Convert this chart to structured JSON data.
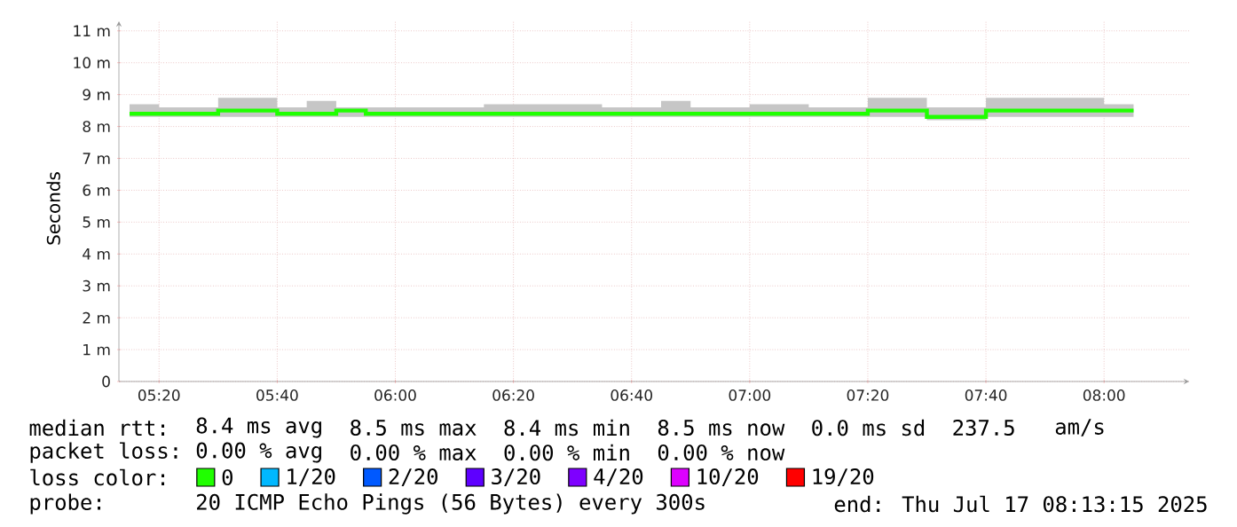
{
  "chart_data": {
    "type": "step",
    "ylabel": "Seconds",
    "x": [
      5.25,
      5.3333,
      5.4167,
      5.5,
      5.5833,
      5.6667,
      5.75,
      5.8333,
      5.9167,
      6.0,
      6.0833,
      6.1667,
      6.25,
      6.3333,
      6.4167,
      6.5,
      6.5833,
      6.6667,
      6.75,
      6.8333,
      6.9167,
      7.0,
      7.0833,
      7.1667,
      7.25,
      7.3333,
      7.4167,
      7.5,
      7.5833,
      7.6667,
      7.75,
      7.8333,
      7.9167,
      8.0,
      8.0833
    ],
    "series": [
      {
        "name": "0",
        "color": "#20ff00",
        "values": [
          8.4,
          8.4,
          8.4,
          8.5,
          8.5,
          8.4,
          8.4,
          8.5,
          8.4,
          8.4,
          8.4,
          8.4,
          8.4,
          8.4,
          8.4,
          8.4,
          8.4,
          8.4,
          8.4,
          8.4,
          8.4,
          8.4,
          8.4,
          8.4,
          8.4,
          8.5,
          8.5,
          8.3,
          8.3,
          8.5,
          8.5,
          8.5,
          8.5,
          8.5,
          8.5
        ],
        "lower": [
          8.3,
          8.3,
          8.3,
          8.3,
          8.3,
          8.3,
          8.3,
          8.3,
          8.3,
          8.3,
          8.3,
          8.3,
          8.3,
          8.3,
          8.3,
          8.3,
          8.3,
          8.3,
          8.3,
          8.3,
          8.3,
          8.3,
          8.3,
          8.3,
          8.3,
          8.3,
          8.3,
          8.2,
          8.2,
          8.3,
          8.3,
          8.3,
          8.3,
          8.3,
          8.3
        ],
        "upper": [
          8.7,
          8.6,
          8.6,
          8.9,
          8.9,
          8.6,
          8.8,
          8.6,
          8.6,
          8.6,
          8.6,
          8.6,
          8.7,
          8.7,
          8.7,
          8.7,
          8.6,
          8.6,
          8.8,
          8.6,
          8.6,
          8.7,
          8.7,
          8.6,
          8.6,
          8.9,
          8.9,
          8.6,
          8.6,
          8.9,
          8.9,
          8.9,
          8.9,
          8.7,
          8.7
        ]
      },
      {
        "name": "1/20",
        "color": "#00b8ff",
        "values": [
          null,
          null,
          null,
          null,
          null,
          null,
          null,
          null,
          null,
          null,
          null,
          null,
          null,
          null,
          null,
          null,
          null,
          null,
          null,
          null,
          null,
          null,
          null,
          null,
          null,
          null,
          null,
          null,
          null,
          null,
          null,
          null,
          null,
          null,
          null
        ]
      },
      {
        "name": "2/20",
        "color": "#0059ff",
        "values": [
          null,
          null,
          null,
          null,
          null,
          null,
          null,
          null,
          null,
          null,
          null,
          null,
          null,
          null,
          null,
          null,
          null,
          null,
          null,
          null,
          null,
          null,
          null,
          null,
          null,
          null,
          null,
          null,
          null,
          null,
          null,
          null,
          null,
          null,
          null
        ]
      },
      {
        "name": "3/20",
        "color": "#5e00ff",
        "values": [
          null,
          null,
          null,
          null,
          null,
          null,
          null,
          null,
          null,
          null,
          null,
          null,
          null,
          null,
          null,
          null,
          null,
          null,
          null,
          null,
          null,
          null,
          null,
          null,
          null,
          null,
          null,
          null,
          null,
          null,
          null,
          null,
          null,
          null,
          null
        ]
      },
      {
        "name": "4/20",
        "color": "#7e00ff",
        "values": [
          null,
          null,
          null,
          null,
          null,
          null,
          null,
          null,
          null,
          null,
          null,
          null,
          null,
          null,
          null,
          null,
          null,
          null,
          null,
          null,
          null,
          null,
          null,
          null,
          null,
          null,
          null,
          null,
          null,
          null,
          null,
          null,
          null,
          null,
          null
        ]
      },
      {
        "name": "10/20",
        "color": "#dd00ff",
        "values": [
          null,
          null,
          null,
          null,
          null,
          null,
          null,
          null,
          null,
          null,
          null,
          null,
          null,
          null,
          null,
          null,
          null,
          null,
          null,
          null,
          null,
          null,
          null,
          null,
          null,
          null,
          null,
          null,
          null,
          null,
          null,
          null,
          null,
          null,
          null
        ]
      },
      {
        "name": "19/20",
        "color": "#ff0000",
        "values": [
          null,
          null,
          null,
          null,
          null,
          null,
          null,
          null,
          null,
          null,
          null,
          null,
          null,
          null,
          null,
          null,
          null,
          null,
          null,
          null,
          null,
          null,
          null,
          null,
          null,
          null,
          null,
          null,
          null,
          null,
          null,
          null,
          null,
          null,
          null
        ]
      }
    ],
    "legend": "bottom",
    "legend_title": "loss color:",
    "xlim": [
      5.22,
      8.24
    ],
    "ylim": [
      0,
      11.3
    ],
    "xticks": [
      {
        "value": 5.3333,
        "label": "05:20"
      },
      {
        "value": 5.6667,
        "label": "05:40"
      },
      {
        "value": 6.0,
        "label": "06:00"
      },
      {
        "value": 6.3333,
        "label": "06:20"
      },
      {
        "value": 6.6667,
        "label": "06:40"
      },
      {
        "value": 7.0,
        "label": "07:00"
      },
      {
        "value": 7.3333,
        "label": "07:20"
      },
      {
        "value": 7.6667,
        "label": "07:40"
      },
      {
        "value": 8.0,
        "label": "08:00"
      }
    ],
    "yticks": [
      0,
      {
        "value": 1,
        "label": "1 m"
      },
      {
        "value": 2,
        "label": "2 m"
      },
      {
        "value": 3,
        "label": "3 m"
      },
      {
        "value": 4,
        "label": "4 m"
      },
      {
        "value": 5,
        "label": "5 m"
      },
      {
        "value": 6,
        "label": "6 m"
      },
      {
        "value": 7,
        "label": "7 m"
      },
      {
        "value": 8,
        "label": "8 m"
      },
      {
        "value": 9,
        "label": "9 m"
      },
      {
        "value": 10,
        "label": "10 m"
      },
      {
        "value": 11,
        "label": "11 m"
      }
    ],
    "grid": true,
    "annotations": [
      "median rtt:",
      "8.4 ms avg",
      "8.5 ms max",
      "8.4 ms min",
      "8.5 ms now",
      "0.0 ms sd",
      "237.5",
      "am/s",
      "packet loss:",
      "0.00 % avg",
      "0.00 % max",
      "0.00 % min",
      "0.00 % now",
      "probe:",
      "20 ICMP Echo Pings (56 Bytes) every 300s",
      "end: Thu Jul 17 08:13:15 2025"
    ]
  }
}
